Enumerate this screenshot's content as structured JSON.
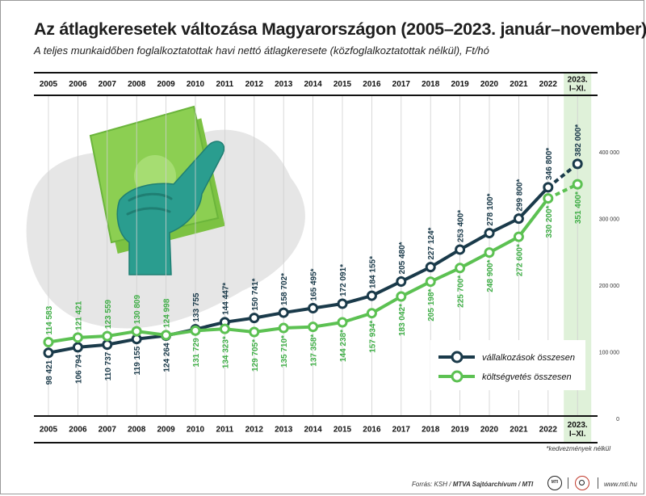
{
  "title": "Az átlagkeresetek változása Magyarországon (2005–2023. január–november)",
  "subtitle": "A teljes munkaidőben foglalkoztatottak havi nettó átlagkeresete (közfoglalkoztatottak nélkül), Ft/hó",
  "note": "*kedvezmények nélkül",
  "footer": {
    "source_prefix": "Forrás: KSH / ",
    "source_brand": "MTVA Sajtóarchívum / MTI",
    "logo1": "MTI",
    "url": "www.mti.hu"
  },
  "colors": {
    "series1": "#1a3a4a",
    "series2": "#5cc152",
    "label2": "#3fae46",
    "highlight": "#dff1d9",
    "hand": "#2a9d8f",
    "money": "#8ccf52",
    "blob": "#e6e6e6"
  },
  "chart_data": {
    "type": "line",
    "title": "Az átlagkeresetek változása Magyarországon (2005–2023. január–november)",
    "subtitle": "A teljes munkaidőben foglalkoztatottak havi nettó átlagkeresete (közfoglalkoztatottak nélkül), Ft/hó",
    "categories": [
      "2005",
      "2006",
      "2007",
      "2008",
      "2009",
      "2010",
      "2011",
      "2012",
      "2013",
      "2014",
      "2015",
      "2016",
      "2017",
      "2018",
      "2019",
      "2020",
      "2021",
      "2022",
      "2023. I–XI."
    ],
    "category_lines": [
      [
        "2005"
      ],
      [
        "2006"
      ],
      [
        "2007"
      ],
      [
        "2008"
      ],
      [
        "2009"
      ],
      [
        "2010"
      ],
      [
        "2011"
      ],
      [
        "2012"
      ],
      [
        "2013"
      ],
      [
        "2014"
      ],
      [
        "2015"
      ],
      [
        "2016"
      ],
      [
        "2017"
      ],
      [
        "2018"
      ],
      [
        "2019"
      ],
      [
        "2020"
      ],
      [
        "2021"
      ],
      [
        "2022"
      ],
      [
        "2023.",
        "I–XI."
      ]
    ],
    "series": [
      {
        "name": "vállalkozások összesen",
        "values": [
          98421,
          106794,
          110737,
          119155,
          124264,
          133755,
          144447,
          150741,
          158702,
          165495,
          172091,
          184155,
          205480,
          227124,
          253400,
          278100,
          299800,
          346800,
          382000
        ],
        "labels": [
          "98 421",
          "106 794",
          "110 737",
          "119 155",
          "124 264",
          "133 755",
          "144 447*",
          "150 741*",
          "158 702*",
          "165 495*",
          "172 091*",
          "184 155*",
          "205 480*",
          "227 124*",
          "253 400*",
          "278 100*",
          "299 800*",
          "346 800*",
          "382 000*"
        ],
        "label_position": [
          "below",
          "below",
          "below",
          "below",
          "below",
          "above",
          "above",
          "above",
          "above",
          "above",
          "above",
          "above",
          "above",
          "above",
          "above",
          "above",
          "above",
          "above",
          "above"
        ]
      },
      {
        "name": "költségvetés összesen",
        "values": [
          114583,
          121421,
          123559,
          130809,
          124998,
          131729,
          134323,
          129705,
          135710,
          137358,
          144238,
          157934,
          183042,
          205198,
          225700,
          248900,
          272600,
          330200,
          351400
        ],
        "labels": [
          "114 583",
          "121 421",
          "123 559",
          "130 809",
          "124 998",
          "131 729",
          "134 323*",
          "129 705*",
          "135 710*",
          "137 358*",
          "144 238*",
          "157 934*",
          "183 042*",
          "205 198*",
          "225 700*",
          "248 900*",
          "272 600*",
          "330 200*",
          "351 400*"
        ],
        "label_position": [
          "above",
          "above",
          "above",
          "above",
          "above",
          "below",
          "below",
          "below",
          "below",
          "below",
          "below",
          "below",
          "below",
          "below",
          "below",
          "below",
          "below",
          "below",
          "below"
        ]
      }
    ],
    "yticks": [
      0,
      100000,
      200000,
      300000,
      400000
    ],
    "ytick_labels": [
      "0",
      "100 000",
      "200 000",
      "300 000",
      "400 000"
    ],
    "ylim": [
      0,
      420000
    ],
    "legend_position": "bottom-right",
    "last_segment_dashed": true,
    "highlight_category": "2023. I–XI.",
    "grid": "vertical"
  }
}
